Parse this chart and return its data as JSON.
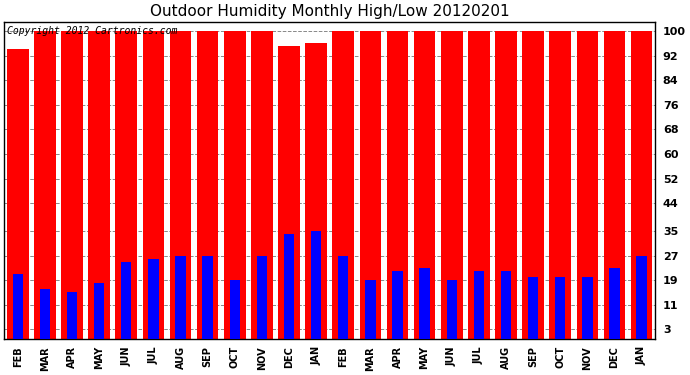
{
  "title": "Outdoor Humidity Monthly High/Low 20120201",
  "copyright": "Copyright 2012 Cartronics.com",
  "months": [
    "FEB",
    "MAR",
    "APR",
    "MAY",
    "JUN",
    "JUL",
    "AUG",
    "SEP",
    "OCT",
    "NOV",
    "DEC",
    "JAN",
    "FEB",
    "MAR",
    "APR",
    "MAY",
    "JUN",
    "JUL",
    "AUG",
    "SEP",
    "OCT",
    "NOV",
    "DEC",
    "JAN"
  ],
  "high_values": [
    94,
    100,
    100,
    100,
    100,
    100,
    100,
    100,
    100,
    100,
    95,
    96,
    100,
    100,
    100,
    100,
    100,
    100,
    100,
    100,
    100,
    100,
    100,
    100
  ],
  "low_values": [
    21,
    16,
    15,
    18,
    25,
    26,
    27,
    27,
    19,
    27,
    34,
    35,
    27,
    19,
    22,
    23,
    19,
    22,
    22,
    20,
    20,
    20,
    23,
    27
  ],
  "high_color": "#ff0000",
  "low_color": "#0000ff",
  "bg_color": "#ffffff",
  "grid_color": "#888888",
  "title_color": "#000000",
  "yticks": [
    3,
    11,
    19,
    27,
    35,
    44,
    52,
    60,
    68,
    76,
    84,
    92,
    100
  ],
  "ylim": [
    0,
    103
  ],
  "title_fontsize": 11,
  "copyright_fontsize": 7,
  "tick_fontsize": 8,
  "xlabel_fontsize": 7
}
